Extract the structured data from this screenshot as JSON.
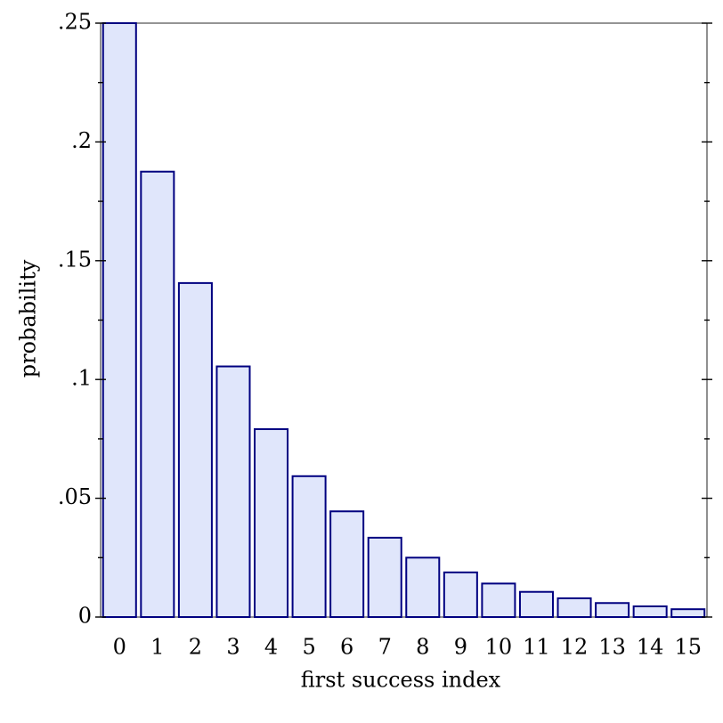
{
  "chart_data": {
    "type": "bar",
    "xlabel": "first success index",
    "ylabel": "probability",
    "categories": [
      "0",
      "1",
      "2",
      "3",
      "4",
      "5",
      "6",
      "7",
      "8",
      "9",
      "10",
      "11",
      "12",
      "13",
      "14",
      "15"
    ],
    "values": [
      0.25,
      0.1875,
      0.1406,
      0.1055,
      0.0791,
      0.0593,
      0.0445,
      0.0334,
      0.025,
      0.0188,
      0.0141,
      0.0106,
      0.0079,
      0.0059,
      0.0045,
      0.0033
    ],
    "ylim": [
      0,
      0.25
    ],
    "yticks": [
      0,
      0.05,
      0.1,
      0.15,
      0.2,
      0.25
    ],
    "ytick_labels": [
      "0",
      ".05",
      ".1",
      ".15",
      ".2",
      ".25"
    ],
    "grid": false,
    "colors": {
      "bar_fill": "#e0e6fb",
      "bar_stroke": "#000080"
    }
  }
}
